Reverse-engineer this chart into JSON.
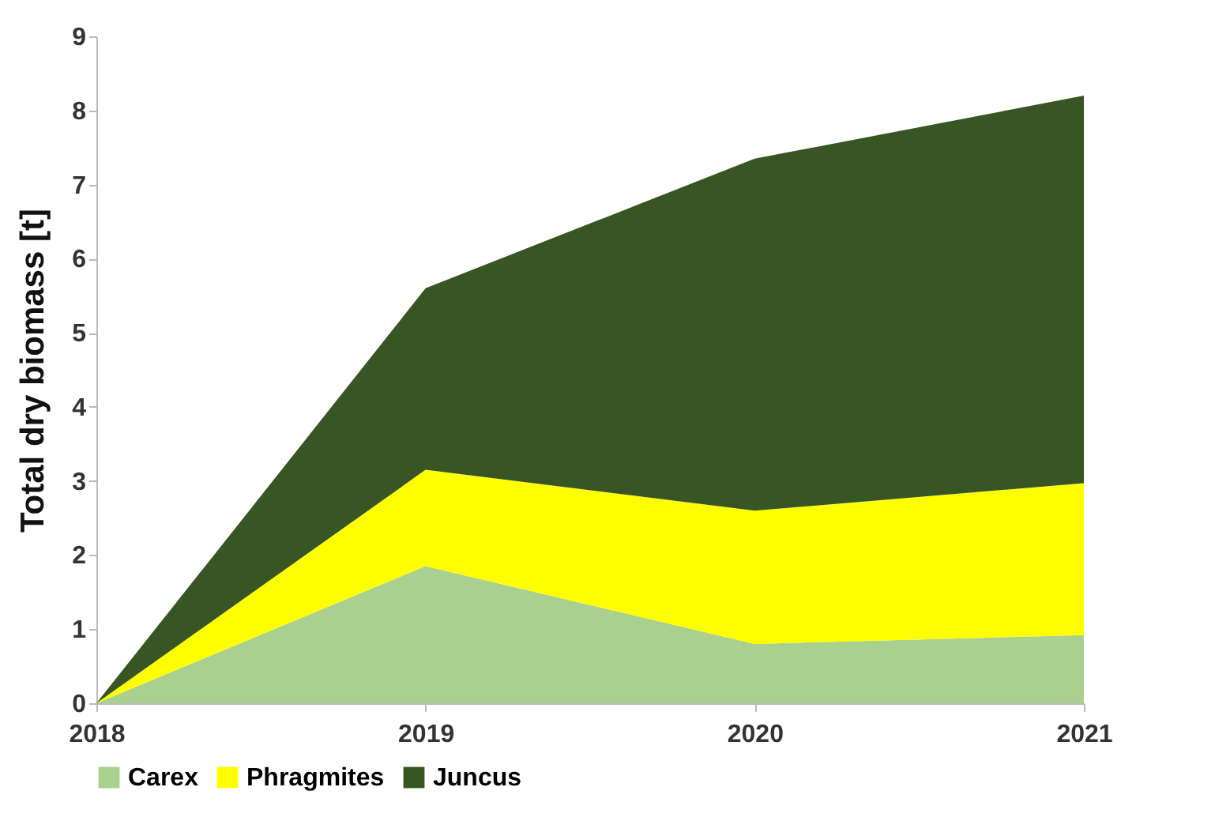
{
  "chart_data": {
    "type": "area",
    "stacked": true,
    "ylabel": "Total dry biomass [t]",
    "categories": [
      "2018",
      "2019",
      "2020",
      "2021"
    ],
    "series": [
      {
        "name": "Carex",
        "color": "#a9d08e",
        "values": [
          0,
          1.85,
          0.8,
          0.92
        ]
      },
      {
        "name": "Phragmites",
        "color": "#ffff00",
        "values": [
          0,
          1.3,
          1.8,
          2.05
        ]
      },
      {
        "name": "Juncus",
        "color": "#375623",
        "values": [
          0,
          2.45,
          4.75,
          5.23
        ]
      }
    ],
    "ylim": [
      0,
      9
    ],
    "yticks": [
      0,
      1,
      2,
      3,
      4,
      5,
      6,
      7,
      8,
      9
    ],
    "grid": false,
    "legend": "bottom"
  }
}
